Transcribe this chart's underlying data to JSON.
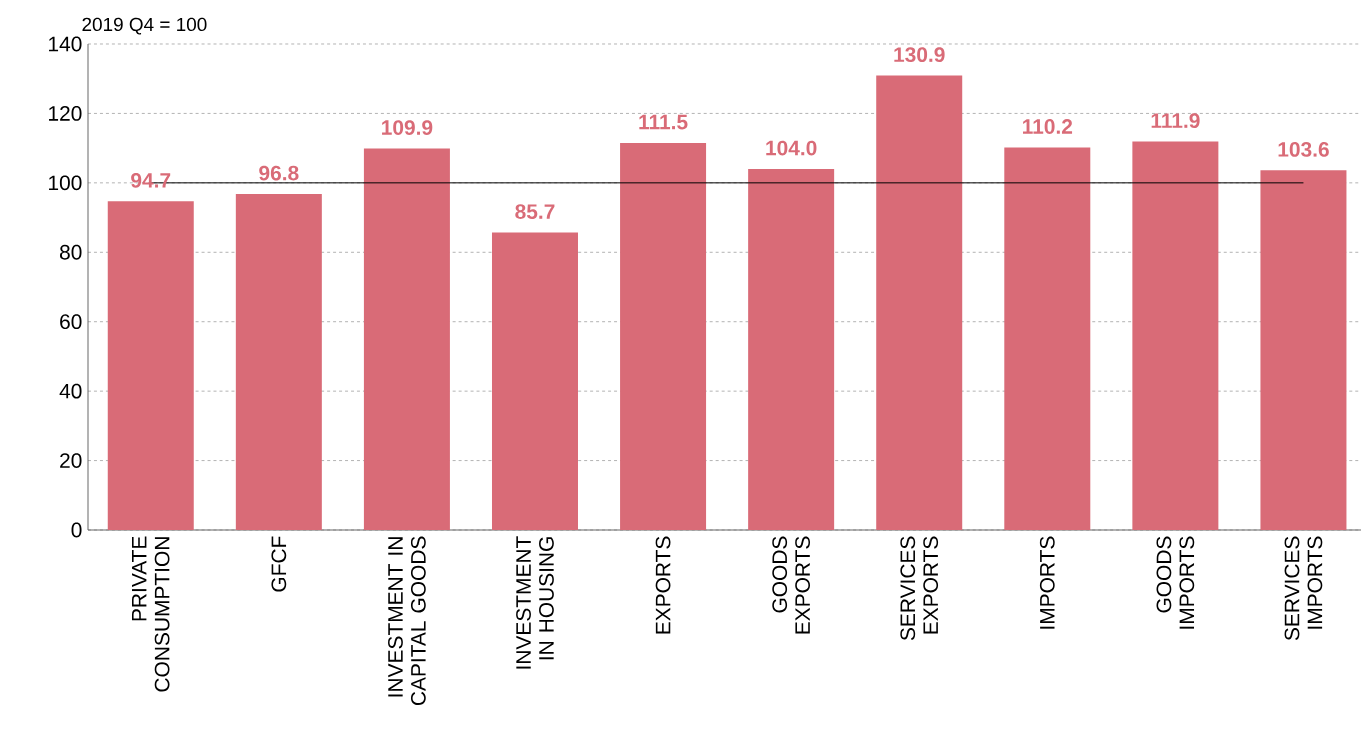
{
  "chart_data": {
    "type": "bar",
    "ylabel": "2019 Q4 = 100",
    "categories": [
      "PRIVATE CONSUMPTION",
      "GFCF",
      "INVESTMENT IN CAPITAL GOODS",
      "INVESTMENT IN HOUSING",
      "EXPORTS",
      "GOODS EXPORTS",
      "SERVICES EXPORTS",
      "IMPORTS",
      "GOODS IMPORTS",
      "SERVICES IMPORTS"
    ],
    "values": [
      94.7,
      96.8,
      109.9,
      85.7,
      111.5,
      104.0,
      130.9,
      110.2,
      111.9,
      103.6
    ],
    "value_labels": [
      "94.7",
      "96.8",
      "109.9",
      "85.7",
      "111.5",
      "104.0",
      "130.9",
      "110.2",
      "111.9",
      "103.6"
    ],
    "color": "#d96b77",
    "ylim": [
      0,
      140
    ],
    "yticks": [
      0,
      20,
      40,
      60,
      80,
      100,
      120,
      140
    ],
    "grid": "y",
    "ref_lines": [
      {
        "axis": "y",
        "value": 100,
        "color": "#000000"
      }
    ]
  }
}
